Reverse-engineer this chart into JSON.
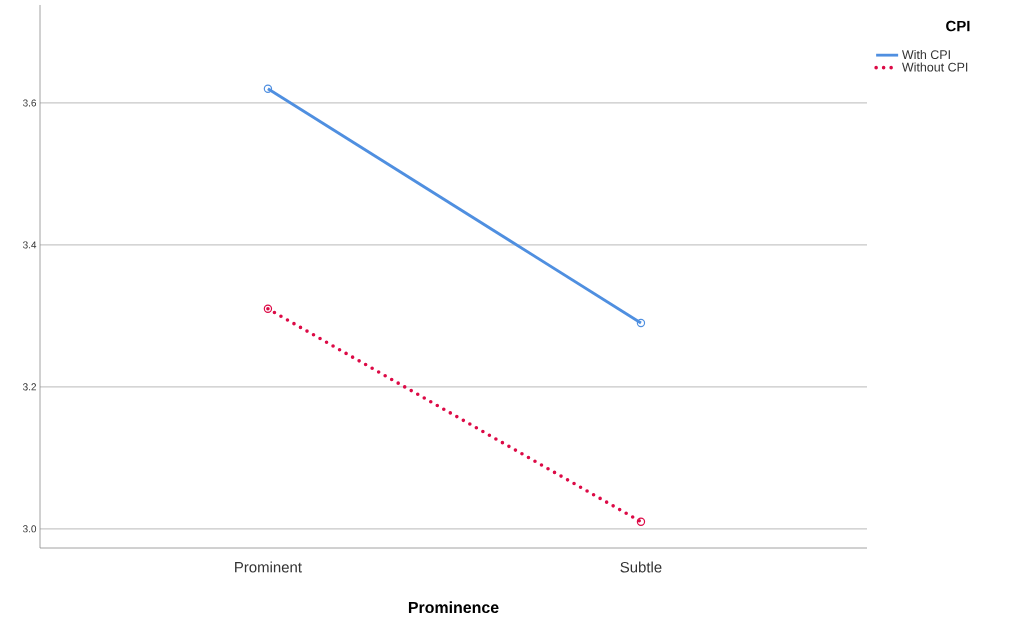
{
  "chart_data": {
    "type": "line",
    "xlabel": "Prominence",
    "legend_title": "CPI",
    "categories": [
      "Prominent",
      "Subtle"
    ],
    "series": [
      {
        "name": "With CPI",
        "color": "#4f8fe0",
        "values": [
          3.62,
          3.29
        ],
        "line_style": "solid"
      },
      {
        "name": "Without CPI",
        "color": "#dc0a46",
        "values": [
          3.31,
          3.01
        ],
        "line_style": "dotted"
      }
    ],
    "ylim": [
      2.973,
      3.738
    ],
    "yticks": [
      {
        "value": 3.0,
        "label": "3.0"
      },
      {
        "value": 3.2,
        "label": "3.2"
      },
      {
        "value": 3.4,
        "label": "3.4"
      },
      {
        "value": 3.6,
        "label": "3.6"
      }
    ],
    "grid": "y",
    "marker": "circle",
    "legend": "top right"
  }
}
